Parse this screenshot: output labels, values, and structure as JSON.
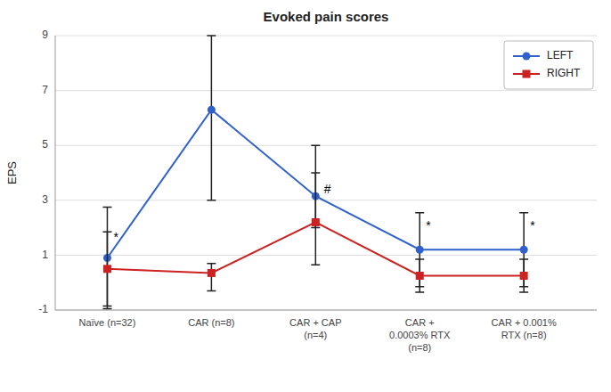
{
  "chart_data": {
    "type": "line",
    "title": "Evoked pain scores",
    "y_label": "EPS",
    "categories": [
      "Naïve (n=32)",
      "CAR (n=8)",
      "CAR + CAP\n(n=4)",
      "CAR +\n0.0003% RTX\n(n=8)",
      "CAR + 0.001%\nRTX (n=8)"
    ],
    "series": [
      {
        "name": "LEFT",
        "color": "#3060cc",
        "marker": "circle",
        "values": [
          0.9,
          6.3,
          3.15,
          1.2,
          1.2
        ],
        "error_lower": [
          1.85,
          3.3,
          1.15,
          1.35,
          1.35
        ],
        "error_upper": [
          1.85,
          2.7,
          1.85,
          1.35,
          1.35
        ]
      },
      {
        "name": "RIGHT",
        "color": "#cc2222",
        "marker": "square",
        "values": [
          0.5,
          0.35,
          2.2,
          0.25,
          0.25
        ],
        "error_lower": [
          1.35,
          0.65,
          1.55,
          0.6,
          0.6
        ],
        "error_upper": [
          1.35,
          0.35,
          1.8,
          0.6,
          0.6
        ]
      }
    ],
    "annotations": [
      {
        "text": "*",
        "x": 0.06,
        "y": 1.45
      },
      {
        "text": "#",
        "x": 2.08,
        "y": 3.2
      },
      {
        "text": "*",
        "x": 3.06,
        "y": 1.85
      },
      {
        "text": "*",
        "x": 4.06,
        "y": 1.85
      }
    ],
    "ylim": [
      -1,
      9
    ],
    "yticks": [
      -1,
      1,
      3,
      5,
      7,
      9
    ],
    "grid": true,
    "legend": "upper right"
  }
}
